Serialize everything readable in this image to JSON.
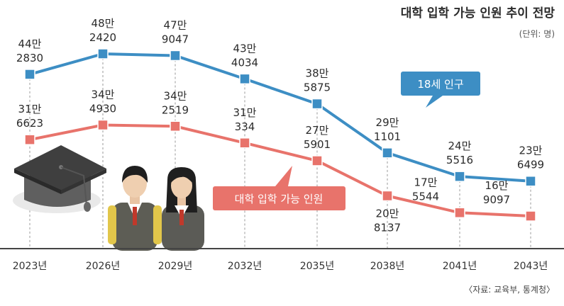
{
  "title": "대학 입학 가능 인원 추이 전망",
  "unit": "(단위: 명)",
  "source": "〈자료: 교육부, 통계청〉",
  "colors": {
    "population": "#3d8ec4",
    "admission": "#e8736b",
    "axis": "#444444",
    "guide": "#9a9a9a"
  },
  "chart_data": {
    "type": "line",
    "x": [
      "2023년",
      "2026년",
      "2029년",
      "2032년",
      "2035년",
      "2038년",
      "2041년",
      "2043년"
    ],
    "series": [
      {
        "name": "18세 인구",
        "values": [
          442830,
          482420,
          479047,
          434034,
          385875,
          291101,
          245516,
          236499
        ],
        "labels": [
          [
            "44만",
            "2830"
          ],
          [
            "48만",
            "2420"
          ],
          [
            "47만",
            "9047"
          ],
          [
            "43만",
            "4034"
          ],
          [
            "38만",
            "5875"
          ],
          [
            "29만",
            "1101"
          ],
          [
            "24만",
            "5516"
          ],
          [
            "23만",
            "6499"
          ]
        ]
      },
      {
        "name": "대학 입학 가능 인원",
        "values": [
          316623,
          344930,
          342519,
          310334,
          275901,
          208137,
          175544,
          169097
        ],
        "labels": [
          [
            "31만",
            "6623"
          ],
          [
            "34만",
            "4930"
          ],
          [
            "34만",
            "2519"
          ],
          [
            "31만",
            "334"
          ],
          [
            "27만",
            "5901"
          ],
          [
            "20만",
            "8137"
          ],
          [
            "17만",
            "5544"
          ],
          [
            "16만",
            "9097"
          ]
        ]
      }
    ]
  }
}
